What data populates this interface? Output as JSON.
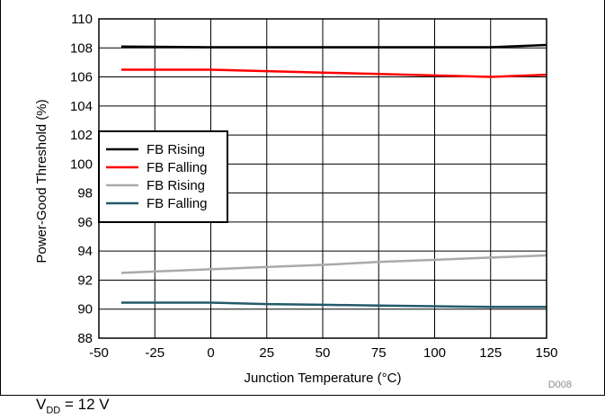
{
  "chart_data": {
    "type": "line",
    "xlabel": "Junction Temperature (°C)",
    "ylabel": "Power-Good Threshold (%)",
    "xlim": [
      -50,
      150
    ],
    "ylim": [
      88,
      110
    ],
    "x_ticks": [
      -50,
      -25,
      0,
      25,
      50,
      75,
      100,
      125,
      150
    ],
    "y_ticks": [
      88,
      90,
      92,
      94,
      96,
      98,
      100,
      102,
      104,
      106,
      108,
      110
    ],
    "grid": true,
    "legend_position": "left",
    "series": [
      {
        "name": "FB Rising",
        "color": "#000000",
        "x": [
          -40,
          0,
          25,
          50,
          75,
          100,
          125,
          150
        ],
        "y": [
          108.1,
          108.05,
          108.05,
          108.05,
          108.05,
          108.05,
          108.05,
          108.2
        ]
      },
      {
        "name": "FB Falling",
        "color": "#ff0000",
        "x": [
          -40,
          0,
          25,
          50,
          75,
          100,
          125,
          150
        ],
        "y": [
          106.5,
          106.5,
          106.4,
          106.3,
          106.2,
          106.1,
          106.0,
          106.15
        ]
      },
      {
        "name": "FB Rising",
        "color": "#aaaaaa",
        "x": [
          -40,
          0,
          25,
          50,
          75,
          100,
          125,
          150
        ],
        "y": [
          92.5,
          92.75,
          92.9,
          93.05,
          93.25,
          93.4,
          93.55,
          93.7
        ]
      },
      {
        "name": "FB Falling",
        "color": "#245a6b",
        "x": [
          -40,
          0,
          25,
          50,
          75,
          100,
          125,
          150
        ],
        "y": [
          90.45,
          90.45,
          90.35,
          90.3,
          90.25,
          90.2,
          90.15,
          90.15
        ]
      }
    ]
  },
  "figure_id": "D008",
  "footnote": {
    "prefix": "V",
    "subscript": "DD",
    "suffix": " = 12 V"
  }
}
